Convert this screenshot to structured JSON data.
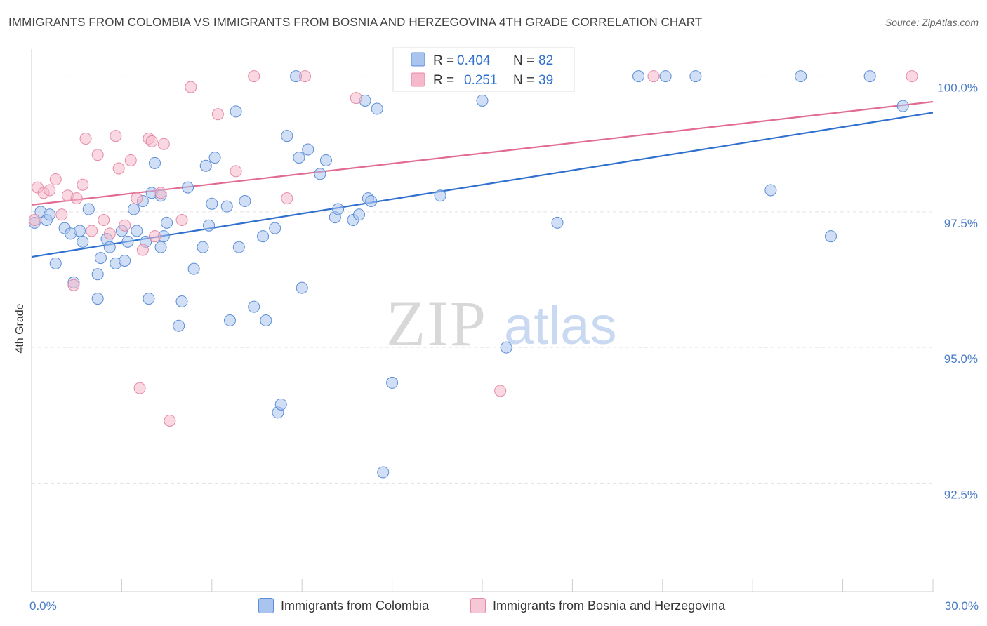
{
  "title": "IMMIGRANTS FROM COLOMBIA VS IMMIGRANTS FROM BOSNIA AND HERZEGOVINA 4TH GRADE CORRELATION CHART",
  "source": "Source: ZipAtlas.com",
  "watermark": {
    "zip": "ZIP",
    "atlas": "atlas"
  },
  "colors": {
    "colombia_fill": "#a9c4ee",
    "colombia_stroke": "#5b8ed6",
    "colombia_line": "#2f6fce",
    "bosnia_fill": "#f6b8cb",
    "bosnia_stroke": "#e58aa6",
    "bosnia_line": "#e26b93",
    "tick_text": "#4a7cc7",
    "grid": "#e3e3e3"
  },
  "legend": {
    "r_label": "R =",
    "n_label": "N =",
    "rows": [
      {
        "r": "0.404",
        "n": "82"
      },
      {
        "r": "0.251",
        "n": "39"
      }
    ]
  },
  "chart_data": {
    "type": "scatter",
    "title": "IMMIGRANTS FROM COLOMBIA VS IMMIGRANTS FROM BOSNIA AND HERZEGOVINA 4TH GRADE CORRELATION CHART",
    "xlabel": "",
    "ylabel": "4th Grade",
    "xlim": [
      0,
      30
    ],
    "ylim": [
      90.5,
      100.5
    ],
    "x_tick_labels": [
      "0.0%",
      "30.0%"
    ],
    "y_ticks": [
      {
        "value": 100.0,
        "label": "100.0%"
      },
      {
        "value": 97.5,
        "label": "97.5%"
      },
      {
        "value": 95.0,
        "label": "95.0%"
      },
      {
        "value": 92.5,
        "label": "92.5%"
      }
    ],
    "grid": true,
    "legend_position": "top-center",
    "series": [
      {
        "name": "Immigrants from Colombia",
        "trend": {
          "x": [
            0,
            30
          ],
          "y": [
            96.67,
            99.33
          ]
        },
        "points": [
          [
            0.1,
            97.3
          ],
          [
            0.3,
            97.5
          ],
          [
            0.5,
            97.35
          ],
          [
            0.6,
            97.45
          ],
          [
            0.8,
            96.55
          ],
          [
            1.1,
            97.2
          ],
          [
            1.3,
            97.1
          ],
          [
            1.4,
            96.2
          ],
          [
            1.6,
            97.15
          ],
          [
            1.7,
            96.95
          ],
          [
            1.9,
            97.55
          ],
          [
            2.2,
            96.35
          ],
          [
            2.2,
            95.9
          ],
          [
            2.3,
            96.65
          ],
          [
            2.5,
            97.0
          ],
          [
            2.6,
            96.85
          ],
          [
            2.8,
            96.55
          ],
          [
            3.0,
            97.15
          ],
          [
            3.1,
            96.6
          ],
          [
            3.2,
            96.95
          ],
          [
            3.4,
            97.55
          ],
          [
            3.5,
            97.15
          ],
          [
            3.7,
            97.7
          ],
          [
            3.8,
            96.95
          ],
          [
            3.9,
            95.9
          ],
          [
            4.0,
            97.85
          ],
          [
            4.1,
            98.4
          ],
          [
            4.3,
            97.8
          ],
          [
            4.3,
            96.85
          ],
          [
            4.4,
            97.05
          ],
          [
            4.5,
            97.3
          ],
          [
            4.9,
            95.4
          ],
          [
            5.0,
            95.85
          ],
          [
            5.2,
            97.95
          ],
          [
            5.4,
            96.45
          ],
          [
            5.7,
            96.85
          ],
          [
            5.8,
            98.35
          ],
          [
            5.9,
            97.25
          ],
          [
            6.0,
            97.65
          ],
          [
            6.1,
            98.5
          ],
          [
            6.5,
            97.6
          ],
          [
            6.6,
            95.5
          ],
          [
            6.8,
            99.35
          ],
          [
            6.9,
            96.85
          ],
          [
            7.1,
            97.7
          ],
          [
            7.4,
            95.75
          ],
          [
            7.7,
            97.05
          ],
          [
            7.8,
            95.5
          ],
          [
            8.1,
            97.2
          ],
          [
            8.2,
            93.8
          ],
          [
            8.3,
            93.95
          ],
          [
            8.5,
            98.9
          ],
          [
            8.9,
            98.5
          ],
          [
            9.0,
            96.1
          ],
          [
            9.2,
            98.65
          ],
          [
            9.6,
            98.2
          ],
          [
            9.8,
            98.45
          ],
          [
            10.1,
            97.4
          ],
          [
            10.2,
            97.55
          ],
          [
            10.7,
            97.35
          ],
          [
            10.9,
            97.45
          ],
          [
            11.1,
            99.55
          ],
          [
            11.2,
            97.75
          ],
          [
            11.3,
            97.7
          ],
          [
            11.5,
            99.4
          ],
          [
            11.7,
            92.7
          ],
          [
            12.0,
            94.35
          ],
          [
            12.8,
            100.0
          ],
          [
            13.6,
            97.8
          ],
          [
            15.0,
            99.55
          ],
          [
            15.8,
            95.0
          ],
          [
            17.5,
            97.3
          ],
          [
            20.2,
            100.0
          ],
          [
            21.1,
            100.0
          ],
          [
            22.1,
            100.0
          ],
          [
            24.6,
            97.9
          ],
          [
            25.6,
            100.0
          ],
          [
            26.6,
            97.05
          ],
          [
            27.9,
            100.0
          ],
          [
            29.0,
            99.45
          ],
          [
            12.9,
            99.95
          ],
          [
            8.8,
            100.0
          ]
        ]
      },
      {
        "name": "Immigrants from Bosnia and Herzegovina",
        "trend": {
          "x": [
            0,
            30
          ],
          "y": [
            97.63,
            99.53
          ]
        },
        "points": [
          [
            0.1,
            97.35
          ],
          [
            0.2,
            97.95
          ],
          [
            0.4,
            97.85
          ],
          [
            0.6,
            97.9
          ],
          [
            0.8,
            98.1
          ],
          [
            1.0,
            97.45
          ],
          [
            1.2,
            97.8
          ],
          [
            1.4,
            96.15
          ],
          [
            1.5,
            97.75
          ],
          [
            1.7,
            98.0
          ],
          [
            1.8,
            98.85
          ],
          [
            2.0,
            97.15
          ],
          [
            2.2,
            98.55
          ],
          [
            2.4,
            97.35
          ],
          [
            2.6,
            97.1
          ],
          [
            2.8,
            98.9
          ],
          [
            2.9,
            98.3
          ],
          [
            3.1,
            97.25
          ],
          [
            3.3,
            98.45
          ],
          [
            3.5,
            97.75
          ],
          [
            3.6,
            94.25
          ],
          [
            3.7,
            96.8
          ],
          [
            3.9,
            98.85
          ],
          [
            4.0,
            98.8
          ],
          [
            4.1,
            97.05
          ],
          [
            4.3,
            97.85
          ],
          [
            4.4,
            98.75
          ],
          [
            4.6,
            93.65
          ],
          [
            5.0,
            97.35
          ],
          [
            5.3,
            99.8
          ],
          [
            6.2,
            99.3
          ],
          [
            6.8,
            98.25
          ],
          [
            7.4,
            100.0
          ],
          [
            8.5,
            97.75
          ],
          [
            9.1,
            100.0
          ],
          [
            10.8,
            99.6
          ],
          [
            15.6,
            94.2
          ],
          [
            20.7,
            100.0
          ],
          [
            29.3,
            100.0
          ]
        ]
      }
    ]
  }
}
